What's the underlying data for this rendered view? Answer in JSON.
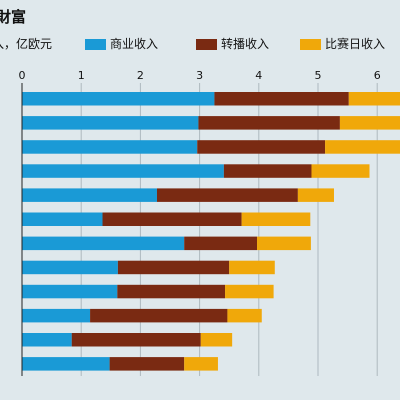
{
  "chart_data": {
    "type": "bar",
    "orientation": "horizontal",
    "stacked": true,
    "title": "財富",
    "subtitle": "入，亿欧元",
    "xlim": [
      0,
      6.5
    ],
    "x_ticks": [
      "0",
      "1",
      "2",
      "3",
      "4",
      "5",
      "6"
    ],
    "grid": true,
    "legend_position": "top",
    "categories": [
      "",
      "",
      "",
      "",
      "",
      "",
      "",
      "",
      "",
      "",
      "",
      ""
    ],
    "series": [
      {
        "name": "商业收入",
        "color": "#1a9ad6",
        "values": [
          3.25,
          2.98,
          2.96,
          3.41,
          2.28,
          1.36,
          2.74,
          1.62,
          1.61,
          1.15,
          0.84,
          1.48
        ]
      },
      {
        "name": "转播收入",
        "color": "#7a2a12",
        "values": [
          2.27,
          2.39,
          2.16,
          1.48,
          2.38,
          2.35,
          1.23,
          1.88,
          1.82,
          2.32,
          2.18,
          1.26
        ]
      },
      {
        "name": "比赛日收入",
        "color": "#f0a80a",
        "values": [
          1.0,
          1.2,
          1.4,
          0.98,
          0.61,
          1.16,
          0.91,
          0.77,
          0.82,
          0.58,
          0.53,
          0.57
        ]
      }
    ]
  }
}
